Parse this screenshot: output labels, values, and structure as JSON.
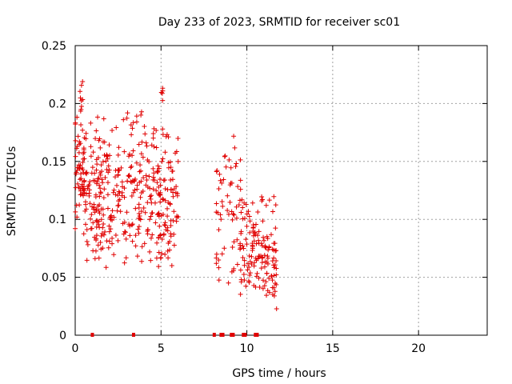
{
  "chart_data": {
    "type": "scatter",
    "title": "Day 233 of 2023, SRMTID for receiver sc01",
    "xlabel": "GPS time / hours",
    "ylabel": "SRMTID / TECUs",
    "xlim": [
      0,
      24
    ],
    "ylim": [
      0,
      0.25
    ],
    "x_ticks": [
      0,
      5,
      10,
      15,
      20
    ],
    "x_tick_labels": [
      "0",
      "5",
      "10",
      "15",
      "20"
    ],
    "y_ticks": [
      0,
      0.05,
      0.1,
      0.15,
      0.2,
      0.25
    ],
    "y_tick_labels": [
      "0",
      "0.05",
      "0.1",
      "0.15",
      "0.2",
      "0.25"
    ],
    "grid": true,
    "marker": "+",
    "color": "#e00000",
    "series": [
      {
        "name": "sc01",
        "clusters": [
          {
            "x_range": [
              0.0,
              0.55
            ],
            "y_range": [
              0.09,
              0.2
            ],
            "count": 60
          },
          {
            "x_range": [
              0.25,
              0.45
            ],
            "y_range": [
              0.18,
              0.227
            ],
            "count": 8
          },
          {
            "x_range": [
              0.5,
              1.5
            ],
            "y_range": [
              0.05,
              0.185
            ],
            "count": 70
          },
          {
            "x_range": [
              1.2,
              3.0
            ],
            "y_range": [
              0.05,
              0.2
            ],
            "count": 120
          },
          {
            "x_range": [
              3.0,
              4.2
            ],
            "y_range": [
              0.055,
              0.2
            ],
            "count": 80
          },
          {
            "x_range": [
              4.2,
              6.0
            ],
            "y_range": [
              0.045,
              0.19
            ],
            "count": 140
          },
          {
            "x_range": [
              4.95,
              5.25
            ],
            "y_range": [
              0.2,
              0.225
            ],
            "count": 5
          },
          {
            "x_range": [
              8.2,
              9.7
            ],
            "y_range": [
              0.035,
              0.186
            ],
            "count": 60
          },
          {
            "x_range": [
              9.6,
              11.8
            ],
            "y_range": [
              0.02,
              0.13
            ],
            "count": 150
          }
        ],
        "zero_points_x": [
          1.0,
          3.4,
          8.1,
          8.5,
          8.6,
          9.1,
          9.2,
          9.8,
          9.9,
          10.5,
          10.6
        ]
      }
    ]
  }
}
